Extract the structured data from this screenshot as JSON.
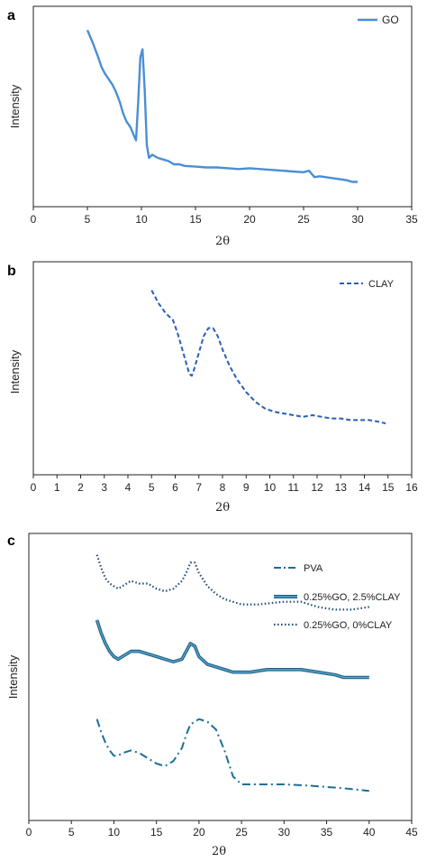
{
  "chart_data": [
    {
      "panel": "a",
      "type": "line",
      "ylabel": "Intensity",
      "xlabel": "2θ",
      "xlim": [
        0,
        35
      ],
      "xticks": [
        0,
        5,
        10,
        15,
        20,
        25,
        30,
        35
      ],
      "legend_position": "top-right",
      "series": [
        {
          "name": "GO",
          "style": "solid",
          "color": "#4a8fd4",
          "x": [
            5,
            5.5,
            6,
            6.3,
            6.6,
            7,
            7.3,
            7.6,
            8,
            8.3,
            8.6,
            9,
            9.3,
            9.5,
            9.7,
            9.9,
            10.1,
            10.3,
            10.5,
            10.7,
            11,
            11.5,
            12,
            12.5,
            13,
            13.5,
            14,
            15,
            16,
            17,
            18,
            19,
            20,
            21,
            22,
            23,
            24,
            25,
            25.5,
            26,
            26.5,
            27,
            28,
            29,
            29.5,
            30
          ],
          "y": [
            0.97,
            0.89,
            0.8,
            0.74,
            0.7,
            0.66,
            0.63,
            0.59,
            0.52,
            0.45,
            0.4,
            0.36,
            0.31,
            0.28,
            0.52,
            0.8,
            0.85,
            0.6,
            0.25,
            0.17,
            0.19,
            0.17,
            0.16,
            0.15,
            0.13,
            0.13,
            0.12,
            0.115,
            0.11,
            0.11,
            0.105,
            0.1,
            0.105,
            0.1,
            0.095,
            0.09,
            0.085,
            0.08,
            0.09,
            0.05,
            0.055,
            0.05,
            0.04,
            0.03,
            0.02,
            0.02
          ]
        }
      ]
    },
    {
      "panel": "b",
      "type": "line",
      "ylabel": "Intensity",
      "xlabel": "2θ",
      "xlim": [
        0,
        16
      ],
      "xticks": [
        0,
        1,
        2,
        3,
        4,
        5,
        6,
        7,
        8,
        9,
        10,
        11,
        12,
        13,
        14,
        15,
        16
      ],
      "legend_position": "top-right",
      "series": [
        {
          "name": "CLAY",
          "style": "dashed",
          "color": "#2a5fb8",
          "x": [
            5,
            5.3,
            5.6,
            5.9,
            6.1,
            6.3,
            6.5,
            6.6,
            6.7,
            6.8,
            7.0,
            7.2,
            7.4,
            7.6,
            7.8,
            8.0,
            8.3,
            8.6,
            9.0,
            9.4,
            9.8,
            10.2,
            10.6,
            11.0,
            11.4,
            11.8,
            12.2,
            12.6,
            13.0,
            13.4,
            13.8,
            14.2,
            14.6,
            14.9
          ],
          "y": [
            0.98,
            0.9,
            0.84,
            0.8,
            0.72,
            0.62,
            0.52,
            0.47,
            0.46,
            0.5,
            0.6,
            0.7,
            0.75,
            0.75,
            0.7,
            0.62,
            0.52,
            0.44,
            0.36,
            0.3,
            0.26,
            0.24,
            0.23,
            0.22,
            0.21,
            0.22,
            0.21,
            0.2,
            0.2,
            0.19,
            0.19,
            0.19,
            0.18,
            0.17
          ]
        }
      ]
    },
    {
      "panel": "c",
      "type": "line",
      "ylabel": "Intensity",
      "xlabel": "2θ",
      "xlim": [
        0,
        45
      ],
      "xticks": [
        0,
        5,
        10,
        15,
        20,
        25,
        30,
        35,
        40,
        45
      ],
      "legend_position": "top-right",
      "series": [
        {
          "name": "PVA",
          "style": "dashdot",
          "color": "#1a6f95",
          "x": [
            8,
            8.5,
            9,
            9.5,
            10,
            10.5,
            11,
            12,
            13,
            14,
            15,
            16,
            17,
            18,
            18.5,
            19,
            20,
            21,
            22,
            23,
            24,
            25,
            27,
            30,
            33,
            35,
            37,
            40
          ],
          "y": [
            0.34,
            0.29,
            0.25,
            0.22,
            0.2,
            0.2,
            0.21,
            0.22,
            0.21,
            0.19,
            0.17,
            0.16,
            0.18,
            0.23,
            0.28,
            0.32,
            0.34,
            0.33,
            0.3,
            0.22,
            0.12,
            0.09,
            0.09,
            0.09,
            0.085,
            0.08,
            0.075,
            0.065
          ]
        },
        {
          "name": "0.25%GO, 2.5%CLAY",
          "style": "solid-double",
          "color": "#2c7fa3",
          "x": [
            8,
            8.5,
            9,
            9.5,
            10,
            10.5,
            11,
            12,
            13,
            14,
            15,
            16,
            17,
            18,
            18.5,
            19,
            19.5,
            20,
            21,
            22,
            24,
            26,
            28,
            30,
            32,
            34,
            36,
            37,
            38,
            40
          ],
          "y": [
            0.72,
            0.67,
            0.63,
            0.6,
            0.58,
            0.57,
            0.58,
            0.6,
            0.6,
            0.59,
            0.58,
            0.57,
            0.56,
            0.57,
            0.6,
            0.63,
            0.62,
            0.58,
            0.55,
            0.54,
            0.52,
            0.52,
            0.53,
            0.53,
            0.53,
            0.52,
            0.51,
            0.5,
            0.5,
            0.5
          ]
        },
        {
          "name": "0.25%GO, 0%CLAY",
          "style": "dotted",
          "color": "#1e4a78",
          "x": [
            8,
            8.5,
            9,
            9.5,
            10,
            10.5,
            11,
            12,
            13,
            14,
            15,
            16,
            17,
            18,
            18.5,
            19,
            19.5,
            20,
            21,
            22,
            23,
            25,
            27,
            30,
            32,
            34,
            36,
            38,
            40
          ],
          "y": [
            0.97,
            0.92,
            0.88,
            0.86,
            0.85,
            0.84,
            0.85,
            0.87,
            0.86,
            0.86,
            0.84,
            0.83,
            0.84,
            0.87,
            0.9,
            0.94,
            0.94,
            0.9,
            0.85,
            0.82,
            0.8,
            0.78,
            0.78,
            0.79,
            0.79,
            0.77,
            0.76,
            0.76,
            0.77
          ]
        }
      ]
    }
  ]
}
